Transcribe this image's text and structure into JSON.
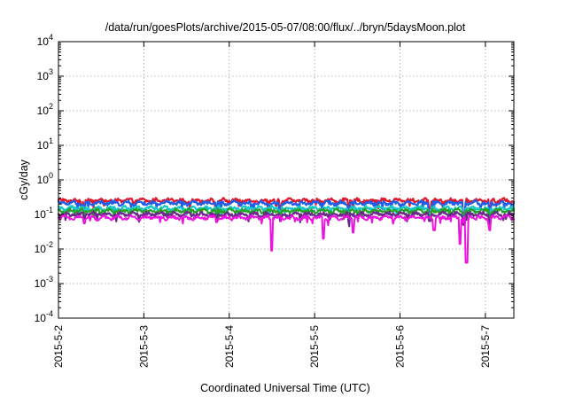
{
  "chart_data": {
    "type": "line",
    "title": "/data/run/goesPlots/archive/2015-05-07/08:00/flux/../bryn/5daysMoon.plot",
    "xlabel": "Coordinated Universal Time (UTC)",
    "ylabel": "cGy/day",
    "yscale": "log",
    "ylim_exp": [
      -4,
      4
    ],
    "xlim": [
      "2015-05-02",
      "2015-05-07 08:00"
    ],
    "grid": true,
    "legend": "none",
    "x_ticks": [
      {
        "label": "2015-5-2",
        "day": 0
      },
      {
        "label": "2015-5-3",
        "day": 1
      },
      {
        "label": "2015-5-4",
        "day": 2
      },
      {
        "label": "2015-5-5",
        "day": 3
      },
      {
        "label": "2015-5-6",
        "day": 4
      },
      {
        "label": "2015-5-7",
        "day": 5
      }
    ],
    "y_ticks": [
      {
        "base": "10",
        "exp": "4",
        "value_exp": 4
      },
      {
        "base": "10",
        "exp": "3",
        "value_exp": 3
      },
      {
        "base": "10",
        "exp": "2",
        "value_exp": 2
      },
      {
        "base": "10",
        "exp": "1",
        "value_exp": 1
      },
      {
        "base": "10",
        "exp": "0",
        "value_exp": 0
      },
      {
        "base": "10",
        "exp": "-1",
        "value_exp": -1
      },
      {
        "base": "10",
        "exp": "-2",
        "value_exp": -2
      },
      {
        "base": "10",
        "exp": "-3",
        "value_exp": -3
      },
      {
        "base": "10",
        "exp": "-4",
        "value_exp": -4
      }
    ],
    "series": [
      {
        "color": "#e0182e",
        "base": 0.25,
        "dips": [
          [
            0.3,
            0.14
          ],
          [
            1.85,
            0.17
          ],
          [
            2.6,
            0.15
          ],
          [
            3.4,
            0.14
          ],
          [
            4.35,
            0.15
          ],
          [
            4.75,
            0.1
          ],
          [
            5.05,
            0.12
          ]
        ]
      },
      {
        "color": "#1f5fe8",
        "base": 0.21,
        "dips": [
          [
            0.3,
            0.12
          ],
          [
            1.85,
            0.14
          ],
          [
            2.6,
            0.12
          ],
          [
            3.4,
            0.11
          ],
          [
            4.35,
            0.12
          ],
          [
            4.75,
            0.08
          ],
          [
            5.05,
            0.1
          ]
        ]
      },
      {
        "color": "#18c8c8",
        "base": 0.15,
        "dips": [
          [
            0.3,
            0.1
          ],
          [
            1.85,
            0.1
          ],
          [
            2.6,
            0.09
          ],
          [
            3.4,
            0.09
          ],
          [
            4.35,
            0.09
          ],
          [
            4.75,
            0.07
          ],
          [
            5.05,
            0.08
          ]
        ]
      },
      {
        "color": "#28a028",
        "base": 0.125,
        "dips": [
          [
            0.3,
            0.09
          ],
          [
            1.85,
            0.09
          ],
          [
            2.6,
            0.08
          ],
          [
            3.4,
            0.08
          ],
          [
            4.35,
            0.08
          ],
          [
            4.75,
            0.06
          ],
          [
            5.05,
            0.07
          ]
        ]
      },
      {
        "color": "#6a2a8a",
        "base": 0.1,
        "dips": [
          [
            0.3,
            0.075
          ],
          [
            1.85,
            0.075
          ],
          [
            2.6,
            0.065
          ],
          [
            3.4,
            0.065
          ],
          [
            4.35,
            0.065
          ],
          [
            4.75,
            0.05
          ],
          [
            5.05,
            0.055
          ]
        ]
      },
      {
        "color": "#ee12e0",
        "base": 0.08,
        "dips": [
          [
            0.3,
            0.055
          ],
          [
            1.85,
            0.06
          ],
          [
            2.5,
            0.009
          ],
          [
            3.1,
            0.02
          ],
          [
            3.45,
            0.03
          ],
          [
            4.4,
            0.035
          ],
          [
            4.7,
            0.014
          ],
          [
            4.78,
            0.004
          ],
          [
            5.05,
            0.035
          ]
        ]
      }
    ]
  }
}
